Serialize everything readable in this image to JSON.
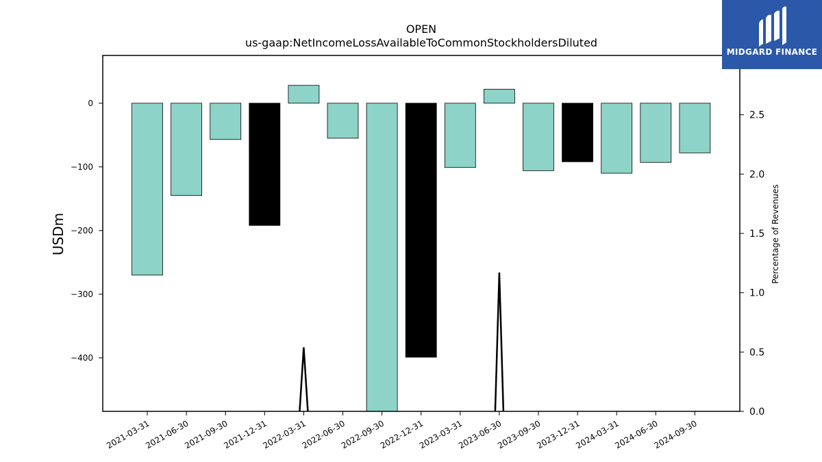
{
  "chart_data": {
    "type": "bar",
    "title": "OPEN",
    "subtitle": "us-gaap:NetIncomeLossAvailableToCommonStockholdersDiluted",
    "ylabel": "USDm",
    "y2label": "Percentage of Revenues",
    "categories": [
      "2021-03-31",
      "2021-06-30",
      "2021-09-30",
      "2021-12-31",
      "2022-03-31",
      "2022-06-30",
      "2022-09-30",
      "2022-12-31",
      "2023-03-31",
      "2023-06-30",
      "2023-09-30",
      "2023-12-31",
      "2024-03-31",
      "2024-06-30",
      "2024-09-30"
    ],
    "values": [
      -270,
      -145,
      -57,
      -192,
      28,
      -55,
      -488,
      -399,
      -101,
      22,
      -106,
      -92,
      -110,
      -93,
      -78
    ],
    "bar_colors": [
      "#8dd3c7",
      "#8dd3c7",
      "#8dd3c7",
      "#000000",
      "#8dd3c7",
      "#8dd3c7",
      "#8dd3c7",
      "#000000",
      "#8dd3c7",
      "#8dd3c7",
      "#8dd3c7",
      "#000000",
      "#8dd3c7",
      "#8dd3c7",
      "#8dd3c7"
    ],
    "line_values": [
      0,
      0,
      0,
      0,
      0.54,
      0,
      0,
      0,
      0,
      1.17,
      0,
      0,
      0,
      0,
      0
    ],
    "ylim": [
      -484,
      75
    ],
    "y2lim": [
      0,
      3.0
    ],
    "yticks": [
      0,
      -100,
      -200,
      -300,
      -400
    ],
    "ytick_labels": [
      "0",
      "−100",
      "−200",
      "−300",
      "−400"
    ],
    "y2ticks": [
      0.0,
      0.5,
      1.0,
      1.5,
      2.0,
      2.5
    ],
    "y2tick_labels": [
      "0.0",
      "0.5",
      "1.0",
      "1.5",
      "2.0",
      "2.5"
    ],
    "grid": false,
    "legend": "none"
  },
  "logo": {
    "text": "MIDGARD FINANCE",
    "background": "#2b58a8"
  }
}
